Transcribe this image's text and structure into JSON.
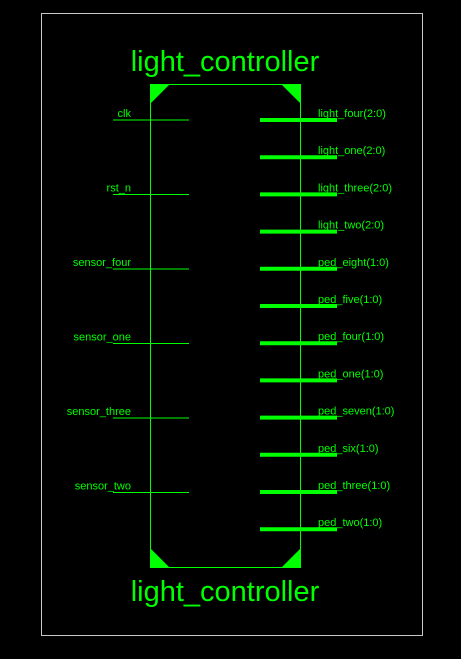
{
  "colors": {
    "background": "#000000",
    "frame": "#c8c8c8",
    "symbol": "#00ff00"
  },
  "block": {
    "name_top": "light_controller",
    "name_bottom": "light_controller"
  },
  "input_ports": [
    {
      "name": "clk"
    },
    {
      "name": "rst_n"
    },
    {
      "name": "sensor_four"
    },
    {
      "name": "sensor_one"
    },
    {
      "name": "sensor_three"
    },
    {
      "name": "sensor_two"
    }
  ],
  "output_ports": [
    {
      "name": "light_four(2:0)"
    },
    {
      "name": "light_one(2:0)"
    },
    {
      "name": "light_three(2:0)"
    },
    {
      "name": "light_two(2:0)"
    },
    {
      "name": "ped_eight(1:0)"
    },
    {
      "name": "ped_five(1:0)"
    },
    {
      "name": "ped_four(1:0)"
    },
    {
      "name": "ped_one(1:0)"
    },
    {
      "name": "ped_seven(1:0)"
    },
    {
      "name": "ped_six(1:0)"
    },
    {
      "name": "ped_three(1:0)"
    },
    {
      "name": "ped_two(1:0)"
    }
  ]
}
